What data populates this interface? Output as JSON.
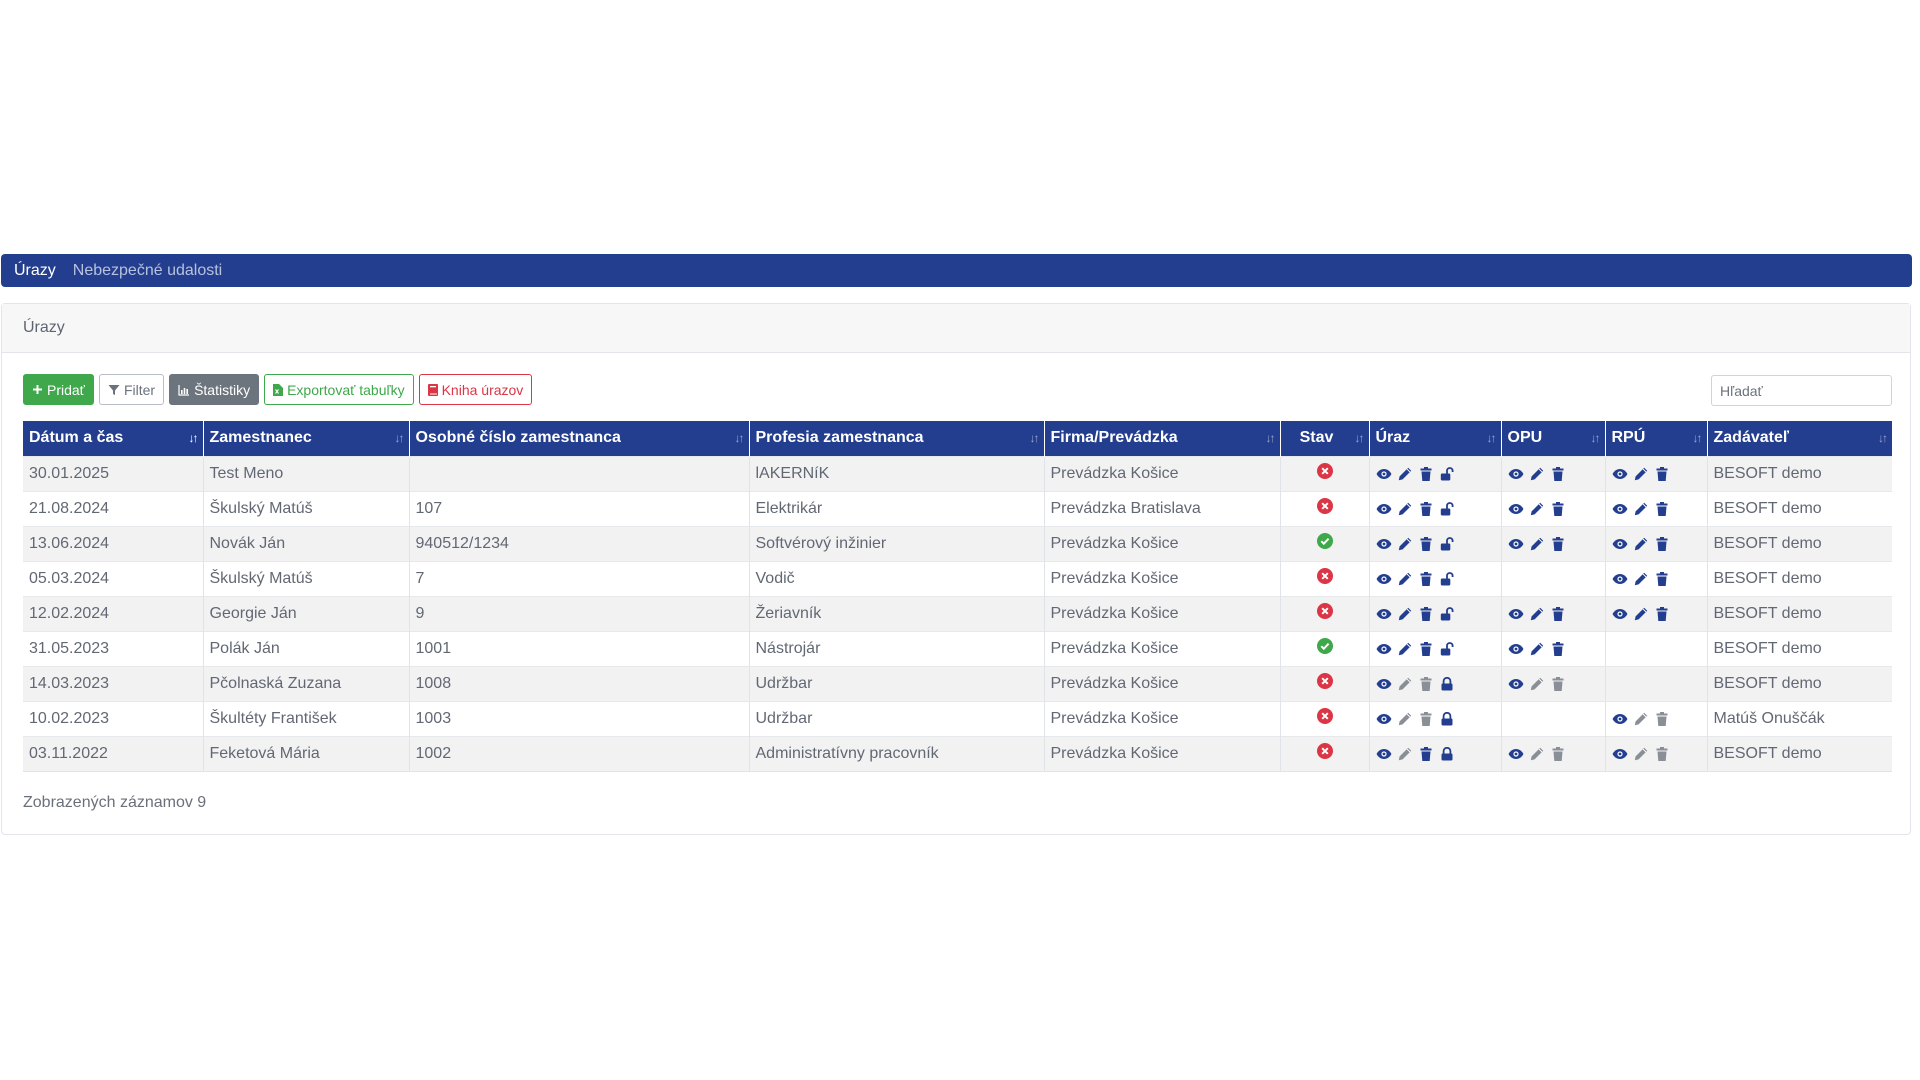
{
  "nav": {
    "items": [
      {
        "label": "Úrazy",
        "active": true
      },
      {
        "label": "Nebezpečné udalosti",
        "active": false
      }
    ]
  },
  "card": {
    "title": "Úrazy"
  },
  "toolbar": {
    "add_label": "Pridať",
    "filter_label": "Filter",
    "stats_label": "Štatistiky",
    "export_label": "Exportovať tabuľky",
    "book_label": "Kniha úrazov"
  },
  "search": {
    "placeholder": "Hľadať",
    "value": ""
  },
  "table": {
    "columns": [
      "Dátum a čas",
      "Zamestnanec",
      "Osobné číslo zamestnanca",
      "Profesia zamestnanca",
      "Firma/Prevádzka",
      "Stav",
      "Úraz",
      "OPU",
      "RPÚ",
      "Zadávateľ"
    ],
    "rows": [
      {
        "date": "30.01.2025",
        "employee": "Test Meno",
        "number": "",
        "profession": "lAKERNíK",
        "company": "Prevádzka Košice",
        "status": "rejected",
        "uraz": {
          "show": true,
          "edit_active": true,
          "delete_active": true,
          "lock": "open"
        },
        "opu": {
          "show": true,
          "edit_active": true,
          "delete_active": true
        },
        "rpu": {
          "show": true,
          "edit_active": true,
          "delete_active": true
        },
        "author": "BESOFT demo"
      },
      {
        "date": "21.08.2024",
        "employee": "Škulský Matúš",
        "number": "107",
        "profession": "Elektrikár",
        "company": "Prevádzka Bratislava",
        "status": "rejected",
        "uraz": {
          "show": true,
          "edit_active": true,
          "delete_active": true,
          "lock": "open"
        },
        "opu": {
          "show": true,
          "edit_active": true,
          "delete_active": true
        },
        "rpu": {
          "show": true,
          "edit_active": true,
          "delete_active": true
        },
        "author": "BESOFT demo"
      },
      {
        "date": "13.06.2024",
        "employee": "Novák Ján",
        "number": "940512/1234",
        "profession": "Softvérový inžinier",
        "company": "Prevádzka Košice",
        "status": "approved",
        "uraz": {
          "show": true,
          "edit_active": true,
          "delete_active": true,
          "lock": "open"
        },
        "opu": {
          "show": true,
          "edit_active": true,
          "delete_active": true
        },
        "rpu": {
          "show": true,
          "edit_active": true,
          "delete_active": true
        },
        "author": "BESOFT demo"
      },
      {
        "date": "05.03.2024",
        "employee": "Škulský Matúš",
        "number": "7",
        "profession": "Vodič",
        "company": "Prevádzka Košice",
        "status": "rejected",
        "uraz": {
          "show": true,
          "edit_active": true,
          "delete_active": true,
          "lock": "open"
        },
        "opu": {
          "show": false
        },
        "rpu": {
          "show": true,
          "edit_active": true,
          "delete_active": true
        },
        "author": "BESOFT demo"
      },
      {
        "date": "12.02.2024",
        "employee": "Georgie Ján",
        "number": "9",
        "profession": "Žeriavník",
        "company": "Prevádzka Košice",
        "status": "rejected",
        "uraz": {
          "show": true,
          "edit_active": true,
          "delete_active": true,
          "lock": "open"
        },
        "opu": {
          "show": true,
          "edit_active": true,
          "delete_active": true
        },
        "rpu": {
          "show": true,
          "edit_active": true,
          "delete_active": true
        },
        "author": "BESOFT demo"
      },
      {
        "date": "31.05.2023",
        "employee": "Polák Ján",
        "number": "1001",
        "profession": "Nástrojár",
        "company": "Prevádzka Košice",
        "status": "approved",
        "uraz": {
          "show": true,
          "edit_active": true,
          "delete_active": true,
          "lock": "open"
        },
        "opu": {
          "show": true,
          "edit_active": true,
          "delete_active": true
        },
        "rpu": {
          "show": false
        },
        "author": "BESOFT demo"
      },
      {
        "date": "14.03.2023",
        "employee": "Pčolnaská Zuzana",
        "number": "1008",
        "profession": "Udržbar",
        "company": "Prevádzka Košice",
        "status": "rejected",
        "uraz": {
          "show": true,
          "edit_active": false,
          "delete_active": false,
          "lock": "closed"
        },
        "opu": {
          "show": true,
          "edit_active": false,
          "delete_active": false
        },
        "rpu": {
          "show": false
        },
        "author": "BESOFT demo"
      },
      {
        "date": "10.02.2023",
        "employee": "Škultéty František",
        "number": "1003",
        "profession": "Udržbar",
        "company": "Prevádzka Košice",
        "status": "rejected",
        "uraz": {
          "show": true,
          "edit_active": false,
          "delete_active": false,
          "lock": "closed"
        },
        "opu": {
          "show": false
        },
        "rpu": {
          "show": true,
          "edit_active": false,
          "delete_active": false
        },
        "author": "Matúš Onuščák"
      },
      {
        "date": "03.11.2022",
        "employee": "Feketová Mária",
        "number": "1002",
        "profession": "Administratívny pracovník",
        "company": "Prevádzka Košice",
        "status": "rejected",
        "uraz": {
          "show": true,
          "edit_active": false,
          "delete_active": true,
          "lock": "closed"
        },
        "opu": {
          "show": true,
          "edit_active": false,
          "delete_active": false
        },
        "rpu": {
          "show": true,
          "edit_active": false,
          "delete_active": false
        },
        "author": "BESOFT demo"
      }
    ]
  },
  "footer": {
    "count_text": "Zobrazených záznamov 9"
  },
  "colors": {
    "brand": "#233e8f",
    "action_icon": "#233e8f",
    "disabled_icon": "#8a8f97",
    "approved": "#3ea84a",
    "rejected": "#dc3545"
  },
  "icons": {
    "view": "eye-icon",
    "edit": "pencil-icon",
    "delete": "trash-icon",
    "lock_open": "unlock-icon",
    "lock_closed": "lock-icon",
    "status_approved": "check-circle-icon",
    "status_rejected": "x-circle-icon"
  }
}
